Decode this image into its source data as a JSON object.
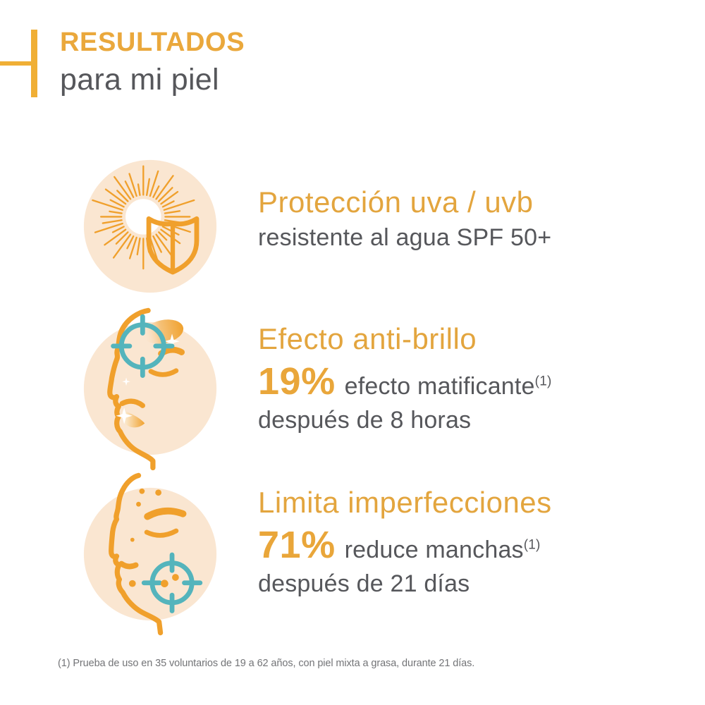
{
  "header": {
    "title": "RESULTADOS",
    "subtitle": "para mi piel"
  },
  "sections": [
    {
      "icon": "sun-shield-icon",
      "heading": "Protección uva / uvb",
      "detail": "resistente al agua SPF 50+"
    },
    {
      "icon": "face-crosshair-forehead-icon",
      "heading": "Efecto anti-brillo",
      "stat_value": "19%",
      "stat_label": "efecto matificante",
      "footnote_ref": "(1)",
      "duration": "después de 8 horas"
    },
    {
      "icon": "face-spots-crosshair-chin-icon",
      "heading": "Limita imperfecciones",
      "stat_value": "71%",
      "stat_label": "reduce manchas",
      "footnote_ref": "(1)",
      "duration": "después de 21 días"
    }
  ],
  "footnote": "(1) Prueba de uso en 35 voluntarios de 19 a 62 años, con piel mixta a grasa, durante 21 días.",
  "colors": {
    "accent-bold": "#EAA83C",
    "accent-heading": "#E3A53E",
    "accent-stat": "#E9A63A",
    "accent-bar": "#F0AF35",
    "icon-orange": "#F0A02C",
    "peach": "#FAE6D1",
    "teal": "#54B4BC",
    "text-dark": "#56575B",
    "text-footnote": "#737477",
    "background": "#FFFFFF"
  }
}
